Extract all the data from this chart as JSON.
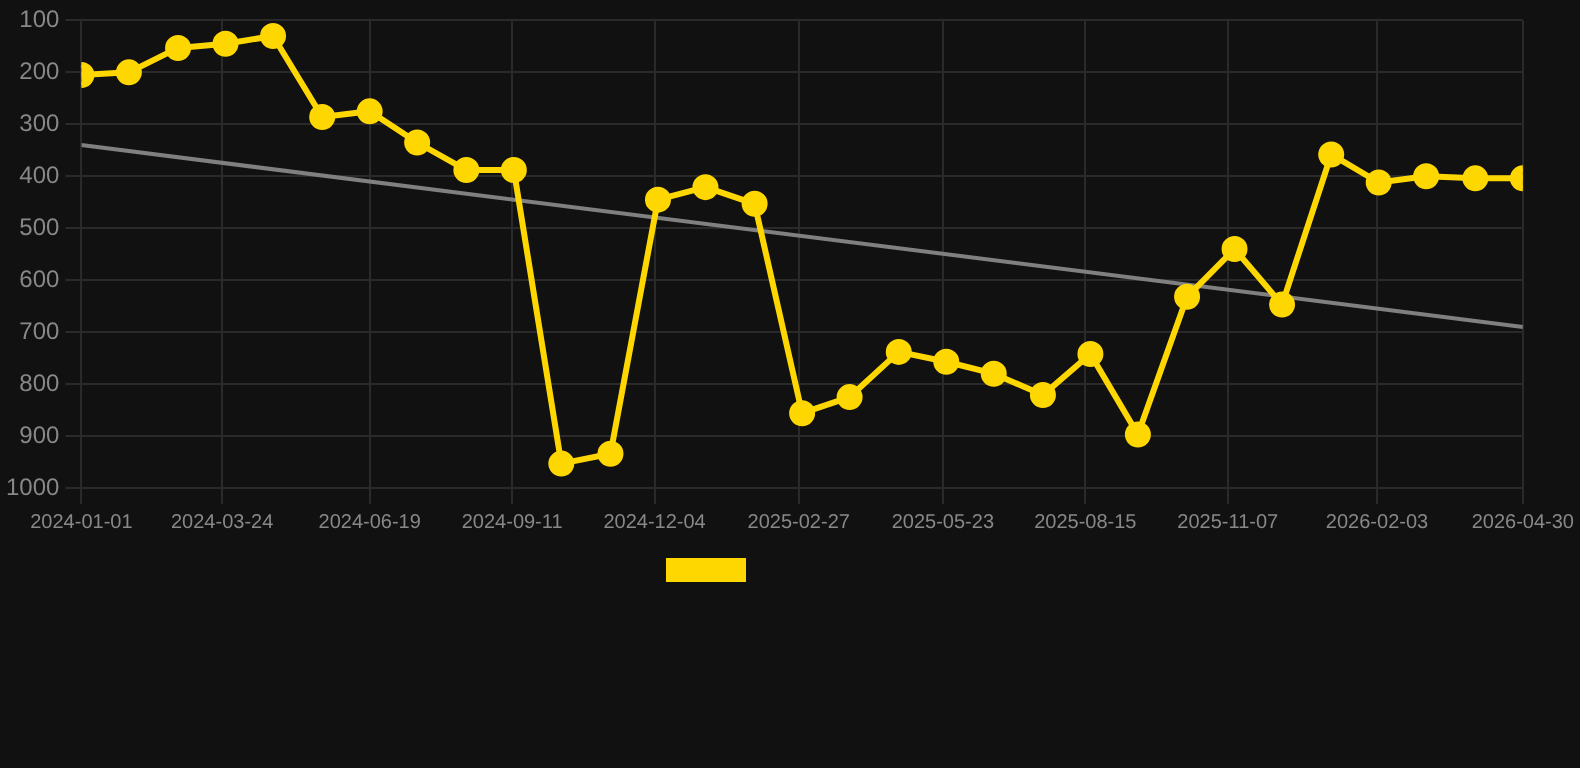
{
  "chart_data": {
    "type": "line",
    "grid": true,
    "marker": "circle",
    "line_style": "solid",
    "xlim": [
      "2024-01-01",
      "2026-04-30"
    ],
    "xticks": [
      "2024-01-01",
      "2024-03-24",
      "2024-06-19",
      "2024-09-11",
      "2024-12-04",
      "2025-02-27",
      "2025-05-23",
      "2025-08-15",
      "2025-11-07",
      "2026-02-03",
      "2026-04-30"
    ],
    "ylim": [
      1000,
      100
    ],
    "yticks": [
      100,
      200,
      300,
      400,
      500,
      600,
      700,
      800,
      900,
      1000
    ],
    "series": [
      {
        "color": "#ffd700",
        "x": [
          "2024-01-01",
          "2024-01-29",
          "2024-02-27",
          "2024-03-26",
          "2024-04-23",
          "2024-05-22",
          "2024-06-19",
          "2024-07-17",
          "2024-08-15",
          "2024-09-12",
          "2024-10-10",
          "2024-11-08",
          "2024-12-06",
          "2025-01-03",
          "2025-02-01",
          "2025-03-01",
          "2025-03-29",
          "2025-04-27",
          "2025-05-25",
          "2025-06-22",
          "2025-07-21",
          "2025-08-18",
          "2025-09-15",
          "2025-10-14",
          "2025-11-11",
          "2025-12-09",
          "2026-01-07",
          "2026-02-04",
          "2026-03-04",
          "2026-04-02",
          "2026-04-30"
        ],
        "values": [
          205,
          200,
          153,
          145,
          130,
          286,
          275,
          335,
          388,
          388,
          953,
          934,
          445,
          421,
          453,
          856,
          825,
          738,
          757,
          780,
          821,
          742,
          897,
          632,
          540,
          647,
          358,
          412,
          400,
          404,
          404
        ]
      },
      {
        "type": "line",
        "marker": "none",
        "color": "#808080",
        "x": [
          "2024-01-01",
          "2026-04-30"
        ],
        "values": [
          340,
          690
        ]
      }
    ]
  }
}
